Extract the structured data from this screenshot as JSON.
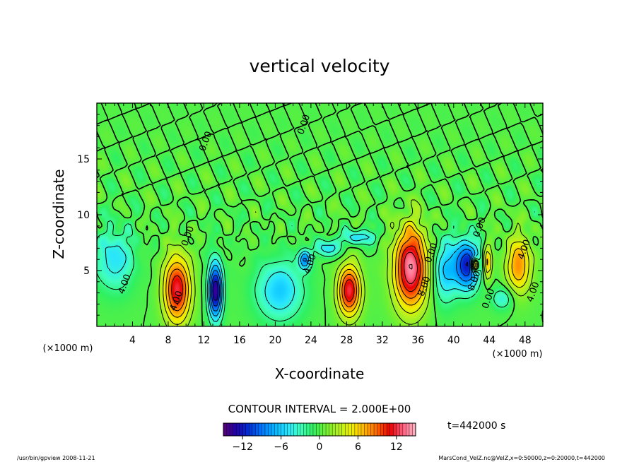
{
  "chart_data": {
    "type": "heatmap",
    "title": "vertical velocity",
    "xlabel": "X-coordinate",
    "ylabel": "Z-coordinate",
    "x_unit": "(×1000 m)",
    "x_unit_right": "(×1000 m)",
    "xlim": [
      0,
      50
    ],
    "ylim": [
      0,
      20
    ],
    "x_ticks": [
      4,
      8,
      12,
      16,
      20,
      24,
      28,
      32,
      36,
      40,
      44,
      48
    ],
    "y_ticks": [
      5,
      10,
      15
    ],
    "contour_interval_text": "CONTOUR INTERVAL = 2.000E+00",
    "contour_labels": [
      {
        "text": "0.00",
        "x": 12.5,
        "y": 16.5
      },
      {
        "text": "0.00",
        "x": 23.5,
        "y": 18.0
      },
      {
        "text": "0.00",
        "x": 10.5,
        "y": 8.0
      },
      {
        "text": "4.00",
        "x": 3.4,
        "y": 3.7
      },
      {
        "text": "4.00",
        "x": 9.2,
        "y": 2.2
      },
      {
        "text": "4.00",
        "x": 24.2,
        "y": 5.5
      },
      {
        "text": "8.00",
        "x": 37.0,
        "y": 3.5
      },
      {
        "text": "0.00",
        "x": 37.8,
        "y": 6.5
      },
      {
        "text": "8.00",
        "x": 42.6,
        "y": 4.0
      },
      {
        "text": "0.00",
        "x": 44.2,
        "y": 2.4
      },
      {
        "text": "0.00",
        "x": 43.2,
        "y": 8.8
      },
      {
        "text": "4.00",
        "x": 48.2,
        "y": 6.8
      },
      {
        "text": "4.00",
        "x": 49.2,
        "y": 3.0
      }
    ],
    "features": [
      {
        "x": 9.0,
        "z": 3.3,
        "sx": 1.5,
        "sz": 3.0,
        "amp": 12
      },
      {
        "x": 13.3,
        "z": 3.2,
        "sx": 0.8,
        "sz": 2.5,
        "amp": -14
      },
      {
        "x": 2.0,
        "z": 6.0,
        "sx": 2.2,
        "sz": 2.8,
        "amp": -5
      },
      {
        "x": 20.5,
        "z": 3.2,
        "sx": 2.6,
        "sz": 2.6,
        "amp": -6
      },
      {
        "x": 23.3,
        "z": 6.0,
        "sx": 0.7,
        "sz": 0.9,
        "amp": -8
      },
      {
        "x": 28.3,
        "z": 3.2,
        "sx": 1.3,
        "sz": 2.3,
        "amp": 12
      },
      {
        "x": 35.2,
        "z": 5.2,
        "sx": 1.9,
        "sz": 3.6,
        "amp": 14
      },
      {
        "x": 39.0,
        "z": 5.0,
        "sx": 1.4,
        "sz": 2.8,
        "amp": -6
      },
      {
        "x": 41.5,
        "z": 5.5,
        "sx": 1.4,
        "sz": 2.2,
        "amp": -12
      },
      {
        "x": 42.4,
        "z": 5.5,
        "sx": 0.4,
        "sz": 0.6,
        "amp": 14
      },
      {
        "x": 43.8,
        "z": 5.7,
        "sx": 0.5,
        "sz": 1.5,
        "amp": 7
      },
      {
        "x": 47.3,
        "z": 5.5,
        "sx": 1.4,
        "sz": 2.5,
        "amp": 8
      },
      {
        "x": 45.5,
        "z": 2.5,
        "sx": 1.2,
        "sz": 1.0,
        "amp": -4
      },
      {
        "x": 29.5,
        "z": 8.0,
        "sx": 2.0,
        "sz": 0.7,
        "amp": -5
      },
      {
        "x": 26.0,
        "z": 7.0,
        "sx": 1.5,
        "sz": 0.8,
        "amp": -5
      }
    ],
    "colorbar": {
      "vmin": -15,
      "vmax": 15,
      "ticks": [
        -12,
        -6,
        0,
        6,
        12
      ],
      "colors": [
        "#5a0078",
        "#2000a8",
        "#0030d8",
        "#0078ff",
        "#00b4ff",
        "#28e4ff",
        "#40ffc0",
        "#30f060",
        "#70f030",
        "#b4f020",
        "#f0f000",
        "#ffb400",
        "#ff6400",
        "#e80000",
        "#ff6080",
        "#ffb8c8"
      ]
    },
    "time_text": "t=442000 s"
  },
  "footer": {
    "left": "/usr/bin/gpview   2008-11-21",
    "right": "MarsCond_VelZ.nc@VelZ,x=0:50000,z=0:20000,t=442000"
  }
}
